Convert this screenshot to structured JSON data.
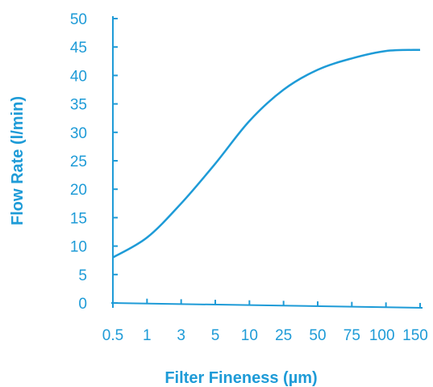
{
  "chart_data": {
    "type": "line",
    "title": "",
    "xlabel": "Filter Fineness (µm)",
    "ylabel": "Flow Rate (l/min)",
    "x_ticks": [
      "0.5",
      "1",
      "3",
      "5",
      "10",
      "25",
      "50",
      "75",
      "100",
      "150"
    ],
    "y_ticks": [
      "0",
      "5",
      "10",
      "15",
      "20",
      "25",
      "30",
      "35",
      "40",
      "45",
      "50"
    ],
    "ylim": [
      0,
      50
    ],
    "grid": false,
    "color": "#1e9bd7",
    "series": [
      {
        "x": [
          "0.5",
          "1",
          "3",
          "5",
          "10",
          "25",
          "50",
          "75",
          "100",
          "150"
        ],
        "values": [
          8,
          11.5,
          17.5,
          24.5,
          32,
          37.5,
          41,
          43,
          44.3,
          44.5
        ]
      }
    ]
  }
}
